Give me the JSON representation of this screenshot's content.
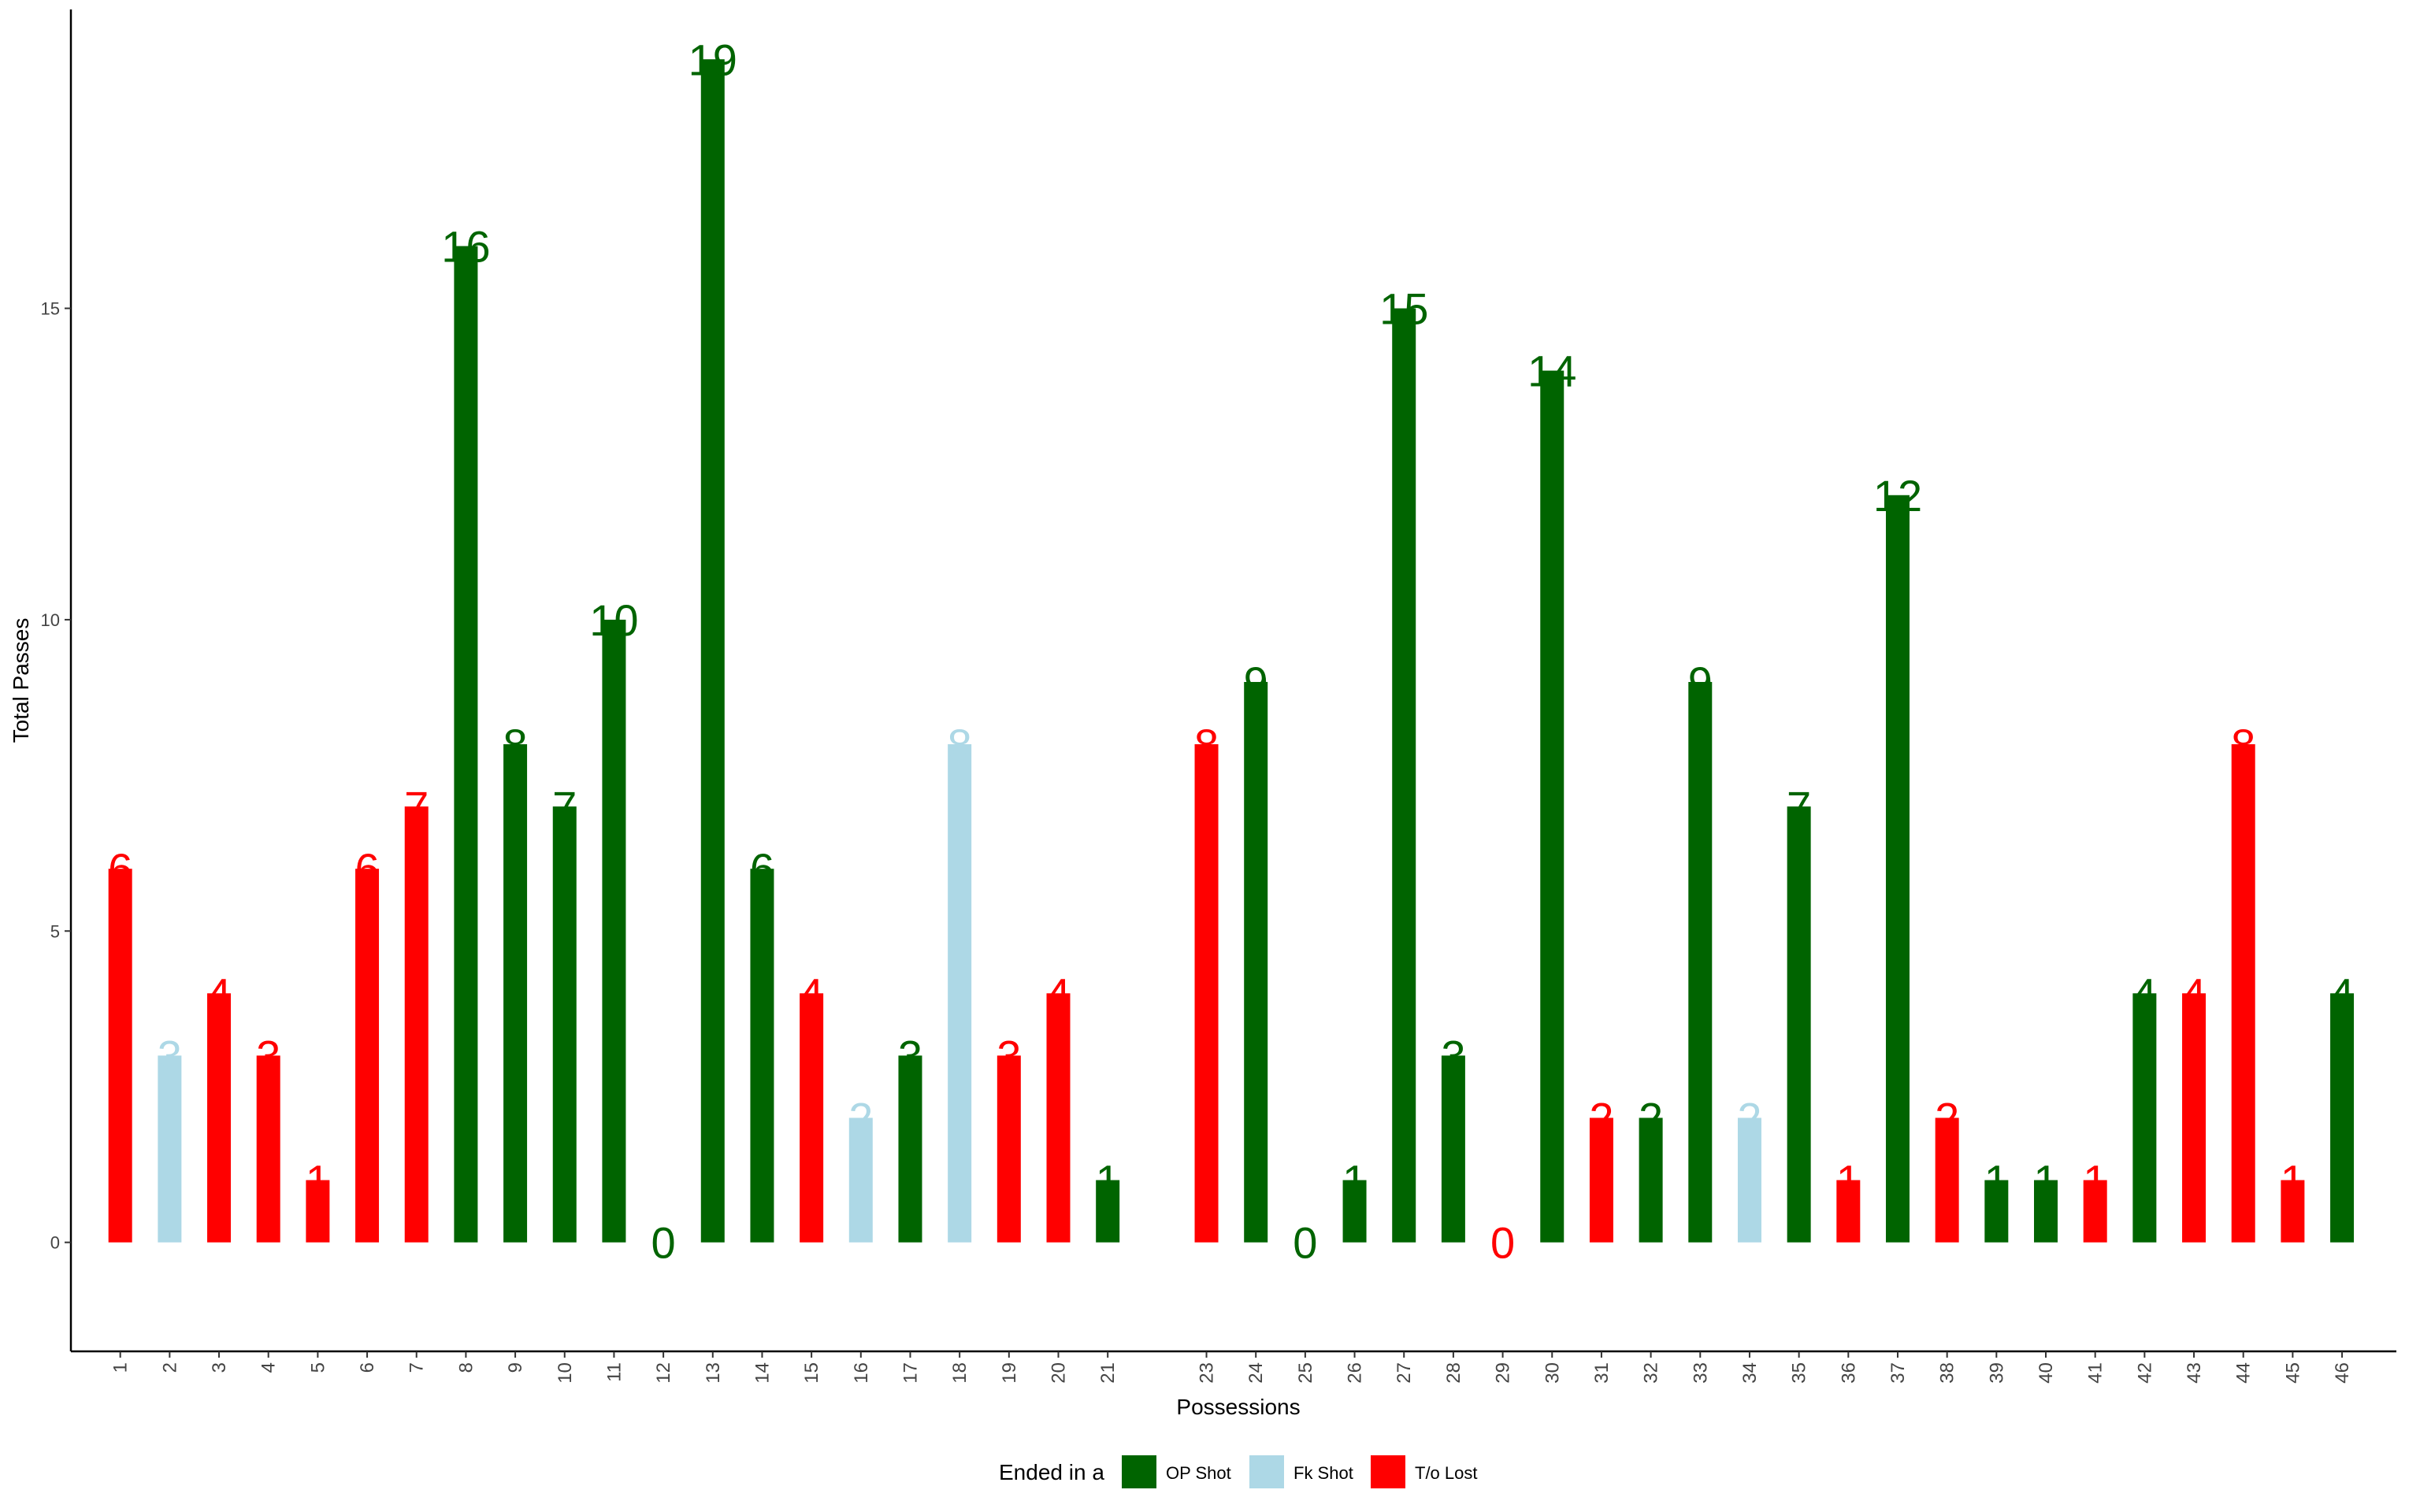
{
  "chart_data": {
    "type": "bar",
    "xlabel": "Possessions",
    "ylabel": "Total Passes",
    "ylim": [
      -1.75,
      19.8
    ],
    "yticks": [
      0,
      5,
      10,
      15
    ],
    "grid": false,
    "legend": {
      "title": "Ended in a",
      "placement": "bottom",
      "entries": [
        {
          "key": "op",
          "label": "OP Shot",
          "color": "#006400"
        },
        {
          "key": "fk",
          "label": "Fk Shot",
          "color": "#add8e6"
        },
        {
          "key": "to",
          "label": "T/o Lost",
          "color": "#ff0000"
        }
      ]
    },
    "categories": [
      "1",
      "2",
      "3",
      "4",
      "5",
      "6",
      "7",
      "8",
      "9",
      "10",
      "11",
      "12",
      "13",
      "14",
      "15",
      "16",
      "17",
      "18",
      "19",
      "20",
      "21",
      "23",
      "24",
      "25",
      "26",
      "27",
      "28",
      "29",
      "30",
      "31",
      "32",
      "33",
      "34",
      "35",
      "36",
      "37",
      "38",
      "39",
      "40",
      "41",
      "42",
      "43",
      "44",
      "45",
      "46"
    ],
    "values": [
      6,
      3,
      4,
      3,
      1,
      6,
      7,
      16,
      8,
      7,
      10,
      0,
      19,
      6,
      4,
      2,
      3,
      8,
      3,
      4,
      1,
      8,
      9,
      0,
      1,
      15,
      3,
      0,
      14,
      2,
      2,
      9,
      2,
      7,
      1,
      12,
      2,
      1,
      1,
      1,
      4,
      4,
      8,
      1,
      4
    ],
    "outcome": [
      "to",
      "fk",
      "to",
      "to",
      "to",
      "to",
      "to",
      "op",
      "op",
      "op",
      "op",
      "op",
      "op",
      "op",
      "to",
      "fk",
      "op",
      "fk",
      "to",
      "to",
      "op",
      "to",
      "op",
      "op",
      "op",
      "op",
      "op",
      "to",
      "op",
      "to",
      "op",
      "op",
      "fk",
      "op",
      "to",
      "op",
      "to",
      "op",
      "op",
      "to",
      "op",
      "to",
      "to",
      "to",
      "op"
    ]
  }
}
